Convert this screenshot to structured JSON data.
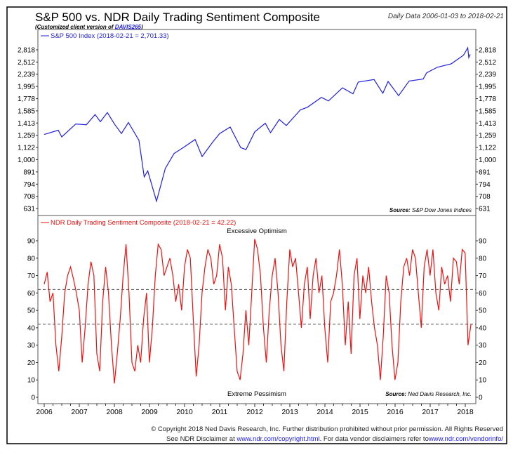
{
  "title": "S&P 500 vs. NDR Daily Trading Sentiment Composite",
  "subtitle_prefix": "(Customized client version of ",
  "subtitle_link": "DAVIS265",
  "subtitle_suffix": ")",
  "date_range": "Daily Data 2006-01-03 to 2018-02-21",
  "footer": {
    "copyright": "© Copyright 2018 Ned Davis Research, Inc. Further distribution prohibited without prior permission. All Rights Reserved",
    "disclaimer_prefix": "See NDR Disclaimer at ",
    "link1": "www.ndr.com/copyright.html",
    "disclaimer_mid": ". For data vendor disclaimers refer to",
    "link2": "www.ndr.com/vendorinfo/"
  },
  "chart_data": [
    {
      "type": "line",
      "name": "S&P 500 Index",
      "legend": "S&P 500 Index (2018-02-21 = 2,701.33)",
      "color": "#2020e0",
      "scale": "log",
      "source_label": "Source:",
      "source": "S&P Dow Jones Indices",
      "yticks": [
        2818,
        2512,
        2239,
        1995,
        1778,
        1585,
        1413,
        1259,
        1122,
        1000,
        891,
        794,
        708,
        631
      ],
      "ytick_labels": [
        "2,818",
        "2,512",
        "2,239",
        "1,995",
        "1,778",
        "1,585",
        "1,413",
        "1,259",
        "1,122",
        "1,000",
        "891",
        "794",
        "708",
        "631"
      ],
      "ylim": [
        631,
        2818
      ],
      "points": [
        [
          2006.0,
          1268
        ],
        [
          2006.4,
          1320
        ],
        [
          2006.5,
          1240
        ],
        [
          2006.9,
          1400
        ],
        [
          2007.2,
          1390
        ],
        [
          2007.45,
          1530
        ],
        [
          2007.6,
          1430
        ],
        [
          2007.8,
          1560
        ],
        [
          2008.0,
          1400
        ],
        [
          2008.2,
          1280
        ],
        [
          2008.4,
          1420
        ],
        [
          2008.7,
          1200
        ],
        [
          2008.85,
          850
        ],
        [
          2008.95,
          900
        ],
        [
          2009.2,
          676
        ],
        [
          2009.45,
          920
        ],
        [
          2009.7,
          1060
        ],
        [
          2010.0,
          1130
        ],
        [
          2010.3,
          1210
        ],
        [
          2010.5,
          1030
        ],
        [
          2010.8,
          1180
        ],
        [
          2011.0,
          1280
        ],
        [
          2011.3,
          1360
        ],
        [
          2011.6,
          1120
        ],
        [
          2011.75,
          1100
        ],
        [
          2012.0,
          1300
        ],
        [
          2012.3,
          1410
        ],
        [
          2012.45,
          1290
        ],
        [
          2012.7,
          1460
        ],
        [
          2012.9,
          1380
        ],
        [
          2013.3,
          1600
        ],
        [
          2013.5,
          1640
        ],
        [
          2013.9,
          1800
        ],
        [
          2014.1,
          1740
        ],
        [
          2014.5,
          1970
        ],
        [
          2014.8,
          1860
        ],
        [
          2014.95,
          2080
        ],
        [
          2015.4,
          2130
        ],
        [
          2015.65,
          1870
        ],
        [
          2015.8,
          2090
        ],
        [
          2016.1,
          1830
        ],
        [
          2016.4,
          2100
        ],
        [
          2016.8,
          2140
        ],
        [
          2016.9,
          2270
        ],
        [
          2017.2,
          2390
        ],
        [
          2017.6,
          2470
        ],
        [
          2017.95,
          2680
        ],
        [
          2018.07,
          2873
        ],
        [
          2018.1,
          2620
        ],
        [
          2018.14,
          2701
        ]
      ]
    },
    {
      "type": "line",
      "name": "NDR Daily Trading Sentiment Composite",
      "legend": "NDR Daily Trading Sentiment Composite (2018-02-21 = 42.22)",
      "color": "#ee1111",
      "source_label": "Source:",
      "source": "Ned Davis Research, Inc.",
      "annotations": [
        "Excessive Optimism",
        "Extreme Pessimism"
      ],
      "reference_lines": [
        62,
        42
      ],
      "yticks": [
        0,
        10,
        20,
        30,
        40,
        50,
        60,
        70,
        80,
        90
      ],
      "ylim": [
        0,
        95
      ],
      "start": 2006.0,
      "step_years": 0.0833,
      "values": [
        65,
        72,
        55,
        60,
        30,
        15,
        35,
        60,
        70,
        75,
        68,
        60,
        50,
        20,
        40,
        65,
        78,
        70,
        25,
        15,
        55,
        75,
        60,
        30,
        8,
        25,
        45,
        70,
        88,
        60,
        20,
        15,
        30,
        20,
        45,
        60,
        20,
        40,
        70,
        88,
        85,
        70,
        75,
        80,
        70,
        55,
        65,
        50,
        75,
        85,
        80,
        45,
        12,
        30,
        60,
        75,
        85,
        80,
        65,
        70,
        88,
        80,
        50,
        75,
        65,
        40,
        15,
        10,
        25,
        50,
        30,
        60,
        91,
        85,
        70,
        40,
        20,
        50,
        70,
        80,
        60,
        30,
        15,
        55,
        85,
        75,
        80,
        60,
        40,
        65,
        75,
        45,
        70,
        80,
        60,
        70,
        40,
        20,
        55,
        60,
        70,
        85,
        65,
        30,
        55,
        25,
        70,
        80,
        45,
        70,
        60,
        75,
        55,
        40,
        30,
        10,
        35,
        70,
        60,
        30,
        10,
        20,
        55,
        75,
        80,
        70,
        85,
        80,
        60,
        40,
        75,
        85,
        70,
        85,
        60,
        50,
        75,
        65,
        70,
        55,
        80,
        78,
        65,
        85,
        83,
        30,
        42
      ]
    },
    {
      "xticks": [
        "2006",
        "2007",
        "2008",
        "2009",
        "2010",
        "2011",
        "2012",
        "2013",
        "2014",
        "2015",
        "2016",
        "2017",
        "2018"
      ]
    }
  ]
}
